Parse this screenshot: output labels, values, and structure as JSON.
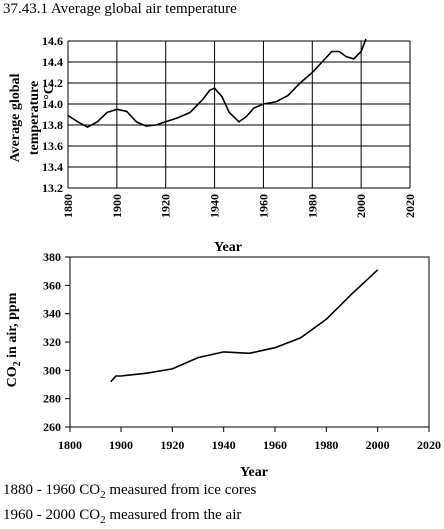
{
  "caption": "37.43.1 Average global air temperature",
  "notes": [
    {
      "years": "1880 - 1960",
      "gas": "CO",
      "sub": "2",
      "text": "measured from ice cores"
    },
    {
      "years": "1960 - 2000",
      "gas": "CO",
      "sub": "2",
      "text": "measured from the air"
    }
  ],
  "chart_data": [
    {
      "type": "line",
      "title": "",
      "xlabel": "Year",
      "ylabel_lines": [
        "Average global",
        "temperature"
      ],
      "ylabel_unit": "°C",
      "xlim": [
        1880,
        2020
      ],
      "ylim": [
        13.2,
        14.6
      ],
      "x_ticks": [
        1880,
        1900,
        1920,
        1940,
        1960,
        1980,
        2000,
        2020
      ],
      "y_ticks": [
        "13.2",
        "13.4",
        "13.6",
        "13.8",
        "14.0",
        "14.2",
        "14.4",
        "14.6"
      ],
      "grid": true,
      "x": [
        1880,
        1884,
        1888,
        1892,
        1896,
        1900,
        1904,
        1908,
        1912,
        1916,
        1920,
        1925,
        1930,
        1935,
        1938,
        1940,
        1943,
        1946,
        1950,
        1953,
        1956,
        1960,
        1965,
        1970,
        1975,
        1980,
        1984,
        1988,
        1991,
        1994,
        1997,
        2000,
        2002
      ],
      "y": [
        13.89,
        13.83,
        13.78,
        13.83,
        13.92,
        13.95,
        13.93,
        13.83,
        13.79,
        13.8,
        13.83,
        13.87,
        13.92,
        14.04,
        14.13,
        14.15,
        14.07,
        13.92,
        13.83,
        13.88,
        13.96,
        14.0,
        14.02,
        14.08,
        14.2,
        14.3,
        14.4,
        14.5,
        14.5,
        14.45,
        14.43,
        14.5,
        14.62
      ]
    },
    {
      "type": "line",
      "title": "",
      "xlabel": "Year",
      "ylabel": "CO2 in air, ppm",
      "ylabel_parts": [
        "CO",
        "2",
        " in air, ppm"
      ],
      "xlim": [
        1800,
        2020
      ],
      "ylim": [
        260,
        380
      ],
      "x_ticks": [
        1800,
        1900,
        1920,
        1940,
        1960,
        1980,
        2000,
        2020
      ],
      "y_ticks": [
        "260",
        "280",
        "300",
        "320",
        "340",
        "360",
        "380"
      ],
      "grid": false,
      "x": [
        1880,
        1890,
        1900,
        1910,
        1920,
        1930,
        1940,
        1950,
        1960,
        1970,
        1980,
        1990,
        2000
      ],
      "y": [
        292,
        296,
        296,
        298,
        301,
        309,
        313,
        312,
        316,
        323,
        336,
        354,
        371
      ]
    }
  ]
}
